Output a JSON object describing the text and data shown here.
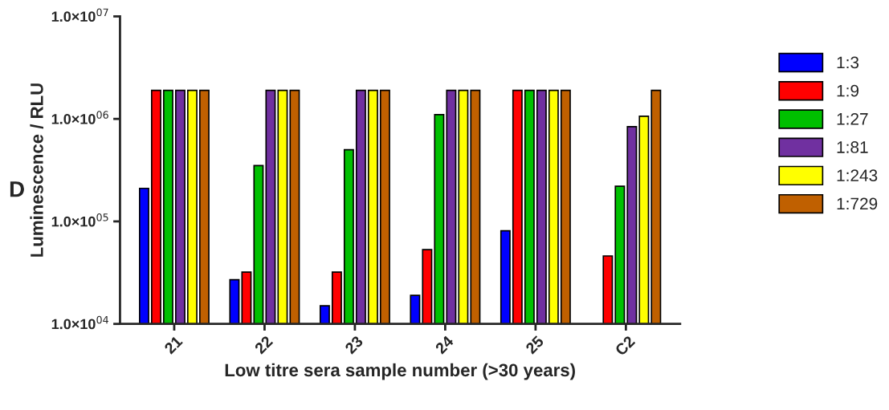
{
  "chart_data": {
    "type": "bar",
    "xlabel": "Low titre sera sample number (>30 years)",
    "ylabel": "Luminescence / RLU",
    "categories": [
      "21",
      "22",
      "23",
      "24",
      "25",
      "C2"
    ],
    "series": [
      {
        "name": "1:3",
        "color": "#0000ff",
        "values": [
          210000,
          27000,
          15000,
          19000,
          81000,
          null
        ]
      },
      {
        "name": "1:9",
        "color": "#ff0000",
        "values": [
          1900000,
          32000,
          32000,
          53000,
          1900000,
          46000
        ]
      },
      {
        "name": "1:27",
        "color": "#00c000",
        "values": [
          1900000,
          350000,
          500000,
          1100000,
          1900000,
          220000
        ]
      },
      {
        "name": "1:81",
        "color": "#7030a0",
        "values": [
          1900000,
          1900000,
          1900000,
          1900000,
          1900000,
          840000
        ]
      },
      {
        "name": "1:243",
        "color": "#ffff00",
        "values": [
          1900000,
          1900000,
          1900000,
          1900000,
          1900000,
          1060000
        ]
      },
      {
        "name": "1:729",
        "color": "#c06000",
        "values": [
          1900000,
          1900000,
          1900000,
          1900000,
          1900000,
          1900000
        ]
      }
    ],
    "log": "y",
    "ylim": [
      10000,
      10000000
    ],
    "yticks": [
      {
        "value": 10000,
        "label": "1.0×10$^{04}$"
      },
      {
        "value": 100000,
        "label": "1.0×10$^{05}$"
      },
      {
        "value": 1000000,
        "label": "1.0×10$^{06}$"
      },
      {
        "value": 10000000,
        "label": "1.0×10$^{07}$"
      }
    ],
    "grid": false,
    "legend": "right",
    "annotations": [
      "D"
    ]
  }
}
